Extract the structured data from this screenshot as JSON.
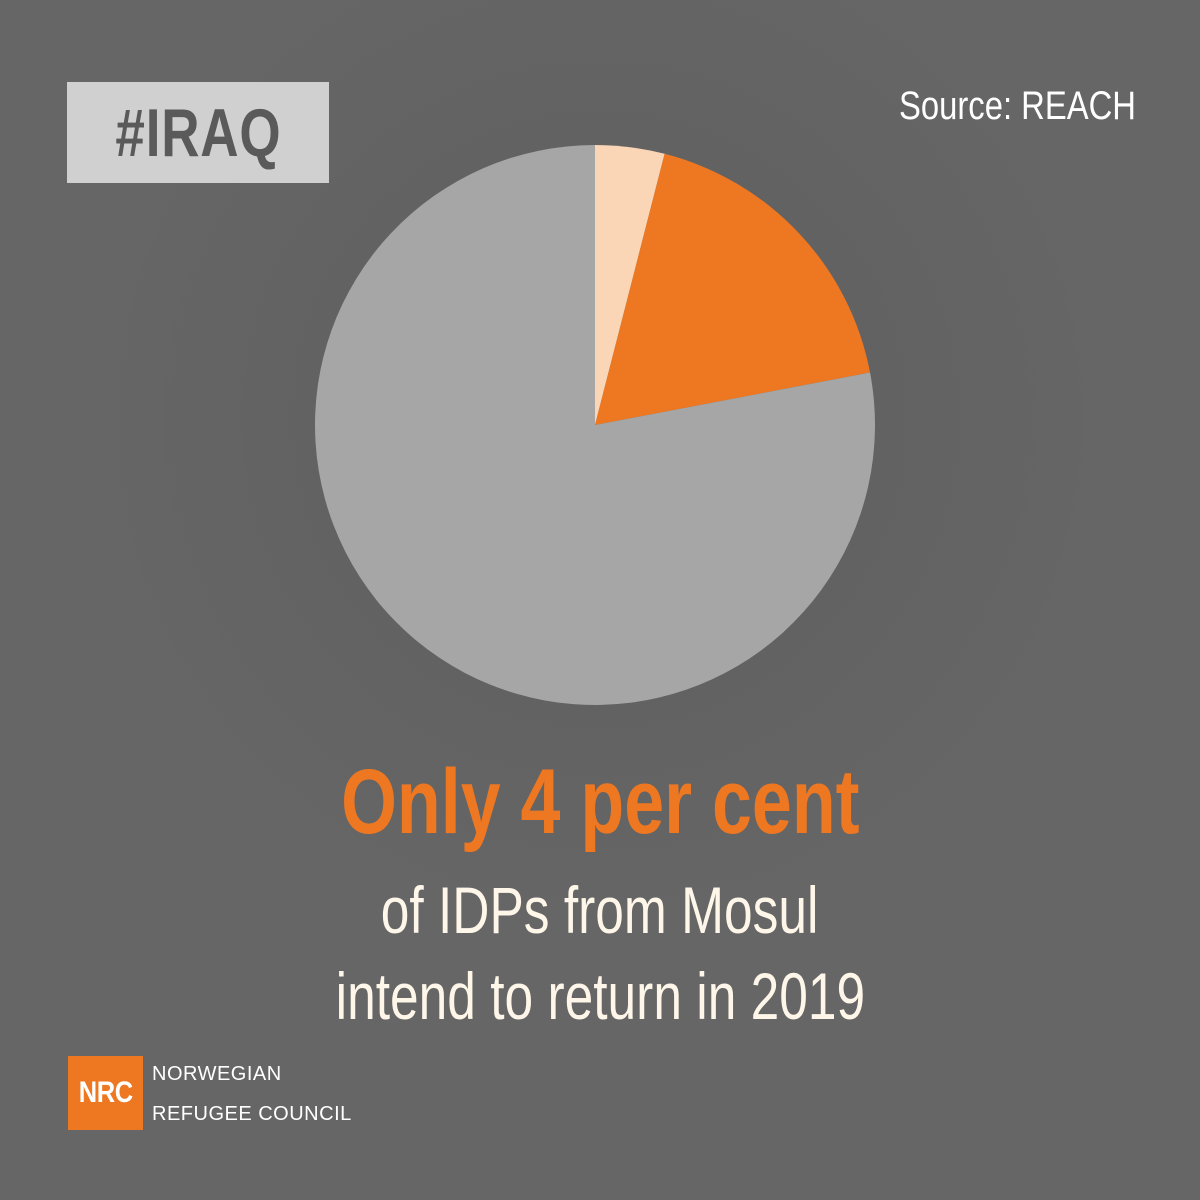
{
  "tag": "#IRAQ",
  "source": "Source: REACH",
  "headline": "Only 4 per cent",
  "subline1": "of IDPs from Mosul",
  "subline2": "intend to return in 2019",
  "logo": {
    "abbr": "NRC",
    "name_line1": "NORWEGIAN",
    "name_line2": "REFUGEE COUNCIL"
  },
  "colors": {
    "background": "#666666",
    "accent": "#ee7722",
    "tag_bg": "#d0d0d0",
    "text_light": "#fdf6e9"
  },
  "chart_data": {
    "type": "pie",
    "title": "",
    "start_angle_deg": 0,
    "direction": "clockwise",
    "slices": [
      {
        "value": 4,
        "color": "#fad6b6"
      },
      {
        "value": 18,
        "color": "#ee7722"
      },
      {
        "value": 78,
        "color": "#a6a6a6"
      }
    ]
  }
}
